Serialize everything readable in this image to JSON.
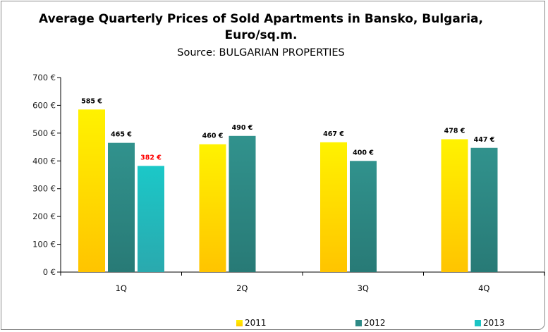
{
  "chart_data": {
    "type": "bar",
    "title": "Average Quarterly Prices of Sold Apartments in Bansko, Bulgaria, Euro/sq.m.",
    "title_lines": [
      "Average Quarterly Prices of Sold Apartments in Bansko, Bulgaria,",
      "Euro/sq.m."
    ],
    "subtitle": "Source: BULGARIAN PROPERTIES",
    "categories": [
      "1Q",
      "2Q",
      "3Q",
      "4Q"
    ],
    "series": [
      {
        "name": "2011",
        "values": [
          585,
          460,
          467,
          478
        ],
        "color": "#ffe600",
        "label_color": "#000000"
      },
      {
        "name": "2012",
        "values": [
          465,
          490,
          400,
          447
        ],
        "color": "#2e8a86",
        "label_color": "#000000"
      },
      {
        "name": "2013",
        "values": [
          382,
          null,
          null,
          null
        ],
        "color": "#1cc4c4",
        "label_color": "#ff0000"
      }
    ],
    "data_labels": [
      [
        "585 €",
        "460 €",
        "467 €",
        "478 €"
      ],
      [
        "465 €",
        "490 €",
        "400 €",
        "447 €"
      ],
      [
        "382 €",
        null,
        null,
        null
      ]
    ],
    "yticks": [
      "0 €",
      "100 €",
      "200 €",
      "300 €",
      "400 €",
      "500 €",
      "600 €",
      "700 €"
    ],
    "ylim": [
      0,
      700
    ],
    "xlabel": "",
    "ylabel": "",
    "grid": false,
    "legend": "bottom"
  }
}
